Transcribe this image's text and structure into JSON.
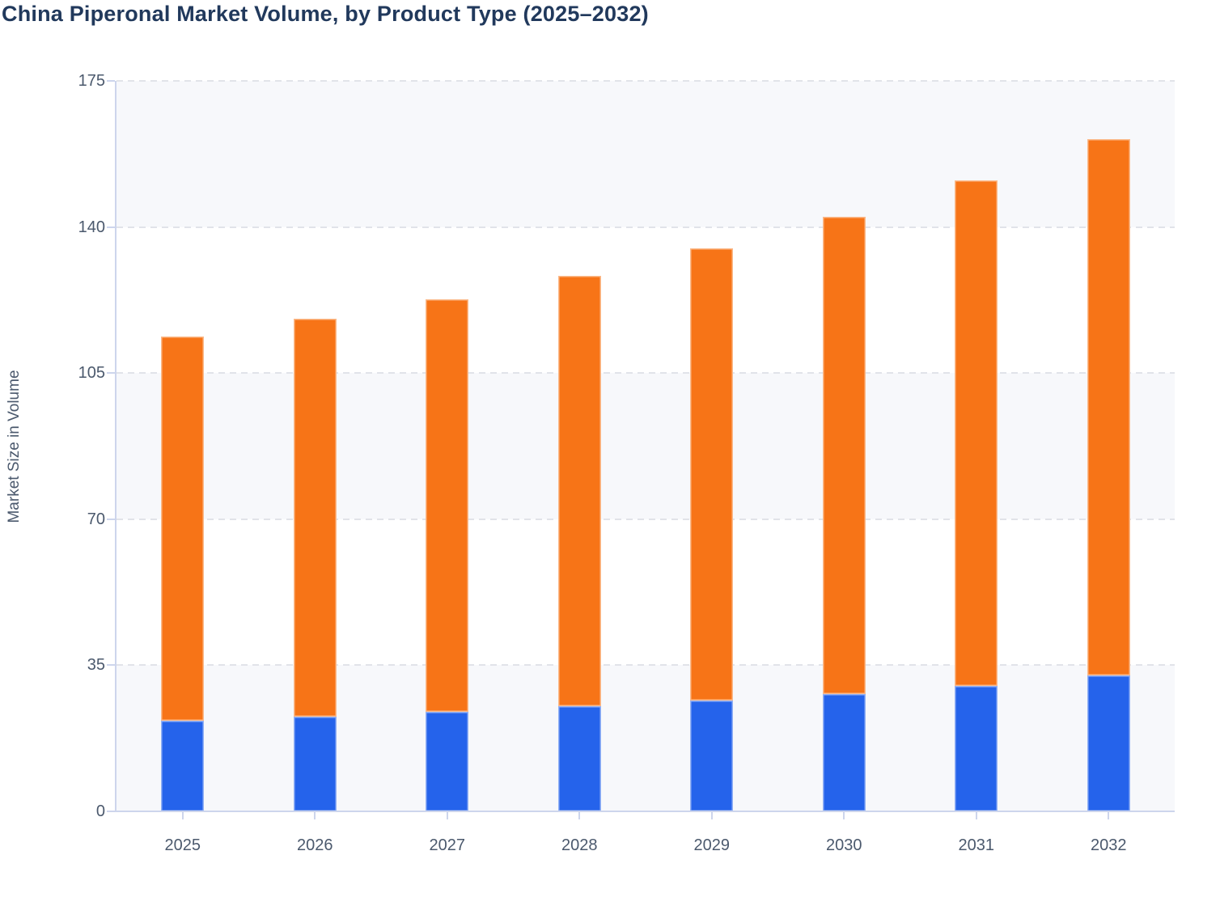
{
  "page": {
    "background": "#ffffff"
  },
  "header": {
    "title": "China Piperonal Market Volume, by Product Type (2025–2032)",
    "title_color": "#21395c"
  },
  "y_axis": {
    "label": "Market Size in Volume",
    "tick_labels": [
      "0",
      "35",
      "70",
      "105",
      "140",
      "175"
    ]
  },
  "x_axis": {
    "tick_labels": [
      "2025",
      "2026",
      "2027",
      "2028",
      "2029",
      "2030",
      "2031",
      "2032"
    ]
  },
  "palette": {
    "series_blue": "#2563eb",
    "series_orange": "#f77417",
    "title_text": "#21395c",
    "axis_text": "#4b596d",
    "band_fill": "#f7f8fb",
    "gridline": "#e1e3e9",
    "axis_line": "#cdd5ec"
  },
  "chart_data": {
    "type": "bar",
    "stacked": true,
    "title": "China Piperonal Market Volume, by Product Type (2025–2032)",
    "xlabel": "",
    "ylabel": "Market Size in Volume",
    "categories": [
      "2025",
      "2026",
      "2027",
      "2028",
      "2029",
      "2030",
      "2031",
      "2032"
    ],
    "series": [
      {
        "name": "bottom-segment-blue",
        "color": "#2563eb",
        "values": [
          21.7,
          22.6,
          23.8,
          25.2,
          26.5,
          28.1,
          30.0,
          32.5
        ]
      },
      {
        "name": "top-segment-orange",
        "color": "#f77417",
        "values": [
          92.1,
          95.5,
          98.9,
          103.0,
          108.4,
          114.4,
          121.2,
          128.6
        ]
      }
    ],
    "stack_totals": [
      113.8,
      118.1,
      122.7,
      128.2,
      134.9,
      142.5,
      151.2,
      161.1
    ],
    "ylim": [
      0,
      175
    ],
    "yticks": [
      0,
      35,
      70,
      105,
      140,
      175
    ],
    "grid": "horizontal-dashed",
    "background_bands": "35-unit alternating bands shaded on 0-35, 70-105, 140-175",
    "legend": "none"
  }
}
